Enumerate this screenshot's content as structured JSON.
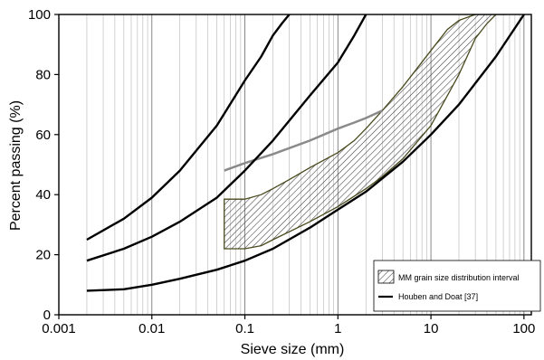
{
  "chart_data": {
    "type": "line",
    "title": "",
    "xlabel": "Sieve size (mm)",
    "ylabel": "Percent passing (%)",
    "xscale": "log",
    "xlim": [
      0.001,
      120
    ],
    "ylim": [
      0,
      100
    ],
    "xticks": [
      {
        "value": 0.001,
        "label": "0.001"
      },
      {
        "value": 0.01,
        "label": "0.01"
      },
      {
        "value": 0.1,
        "label": "0.1"
      },
      {
        "value": 1,
        "label": "1"
      },
      {
        "value": 10,
        "label": "10"
      },
      {
        "value": 100,
        "label": "100"
      }
    ],
    "yticks": [
      0,
      20,
      40,
      60,
      80,
      100
    ],
    "grid": {
      "x_minor_log": true,
      "y": false
    },
    "legend": {
      "position": "lower-right",
      "entries": [
        {
          "label": "MM grain size distribution interval",
          "style": "hatched-patch"
        },
        {
          "label": "Houben and Doat [37]",
          "style": "black-line"
        }
      ]
    },
    "colors": {
      "envelope": "#000000",
      "gray_curve": "#8a8a8a",
      "band_outline": "#4a4a1e",
      "hatch": "#3a3a3a"
    },
    "series": [
      {
        "name": "Houben and Doat [37]",
        "role": "upper-envelope",
        "x": [
          0.002,
          0.005,
          0.01,
          0.02,
          0.05,
          0.1,
          0.15,
          0.2,
          0.25,
          0.3
        ],
        "y": [
          25,
          32,
          39,
          48,
          63,
          78,
          86,
          93,
          97,
          100
        ]
      },
      {
        "role": "middle-envelope",
        "x": [
          0.002,
          0.005,
          0.01,
          0.02,
          0.05,
          0.1,
          0.2,
          0.5,
          1,
          1.5,
          2
        ],
        "y": [
          18,
          22,
          26,
          31,
          39,
          48,
          58,
          73,
          84,
          93,
          100
        ]
      },
      {
        "role": "lower-envelope",
        "x": [
          0.002,
          0.005,
          0.01,
          0.02,
          0.05,
          0.1,
          0.2,
          0.5,
          1,
          2,
          5,
          10,
          20,
          50,
          100
        ],
        "y": [
          8,
          8.5,
          10,
          12,
          15,
          18,
          22,
          29,
          35,
          41,
          51,
          60,
          70,
          86,
          100
        ]
      },
      {
        "role": "gray-curve",
        "x": [
          0.06,
          0.1,
          0.2,
          0.5,
          1,
          1.5,
          2,
          3
        ],
        "y": [
          48,
          50.5,
          53.5,
          58,
          62,
          64,
          65.5,
          68
        ]
      },
      {
        "name": "MM grain size distribution interval",
        "role": "band-upper",
        "x": [
          0.06,
          0.1,
          0.15,
          0.2,
          0.3,
          0.5,
          1,
          1.5,
          2,
          3,
          5,
          10,
          15,
          20,
          30,
          50,
          65
        ],
        "y": [
          38.5,
          38.5,
          40,
          42,
          45,
          49,
          54,
          58,
          62,
          68,
          76,
          88,
          95,
          98,
          100,
          100,
          100
        ]
      },
      {
        "name": "MM grain size distribution interval",
        "role": "band-lower",
        "x": [
          0.06,
          0.1,
          0.15,
          0.2,
          0.5,
          1,
          2,
          3,
          5,
          10,
          20,
          30,
          40,
          50
        ],
        "y": [
          22,
          22,
          23,
          25,
          31,
          36,
          42,
          46,
          52,
          63,
          80,
          92,
          97,
          100
        ]
      }
    ]
  }
}
